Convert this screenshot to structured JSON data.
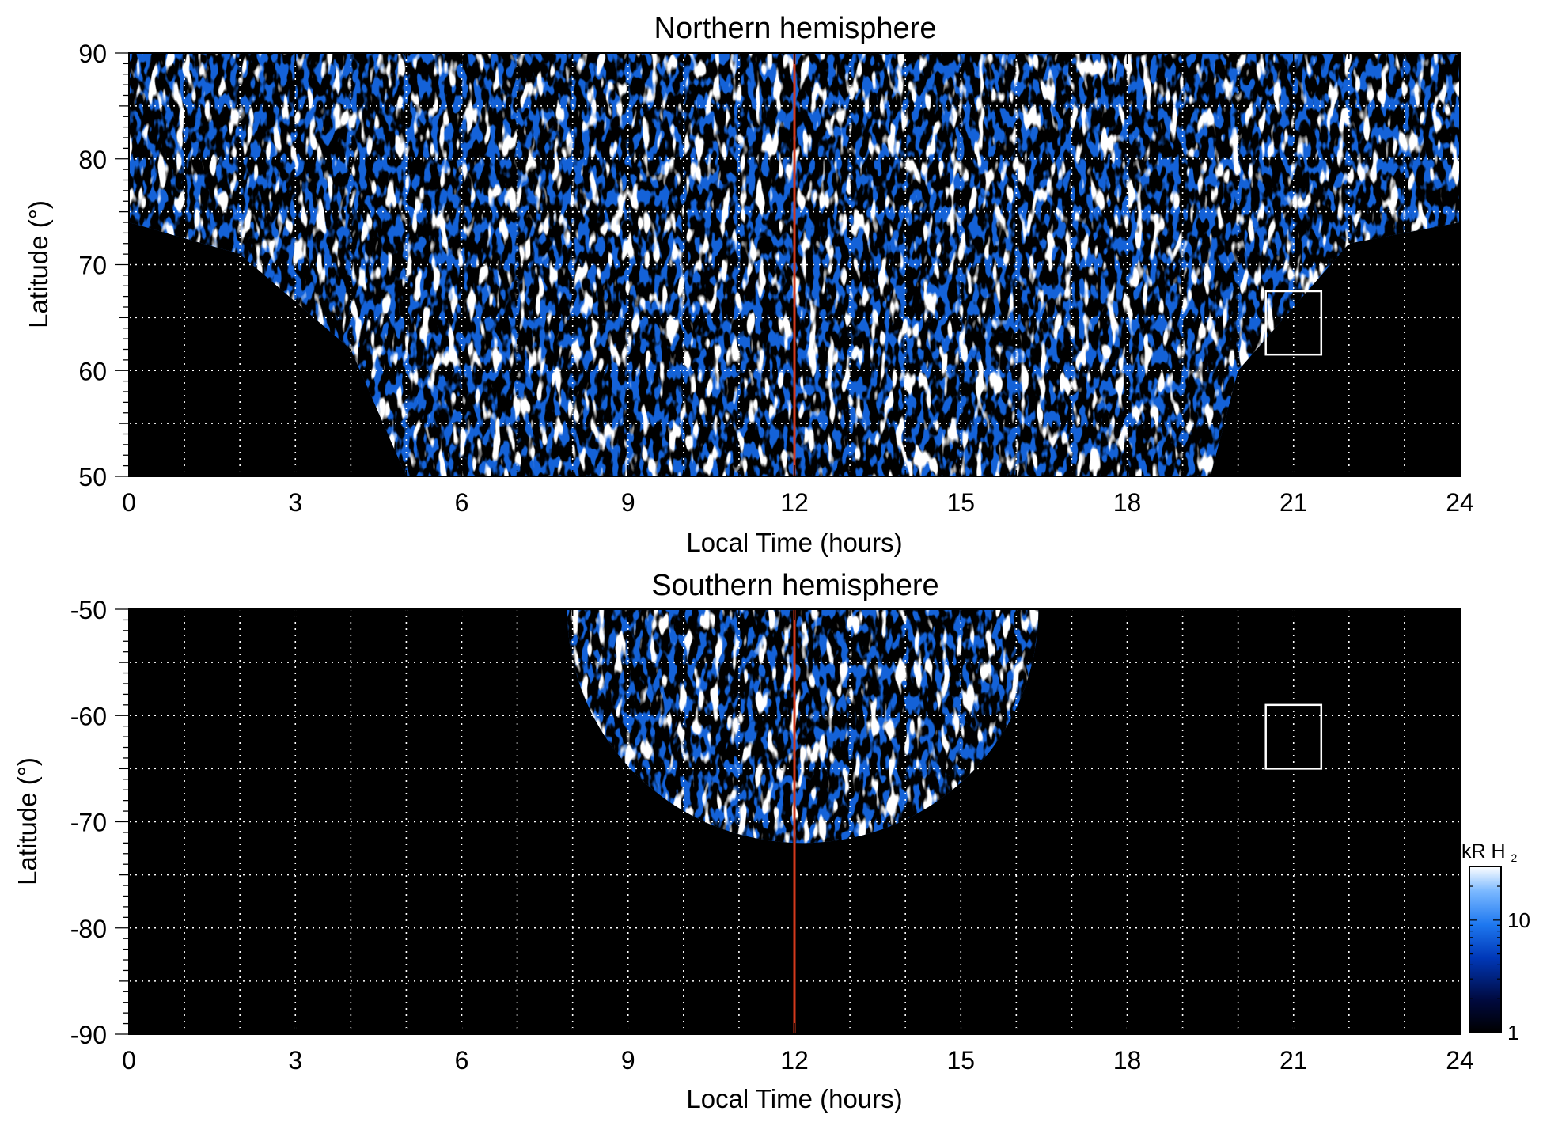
{
  "chart_data": [
    {
      "type": "heatmap",
      "title": "Northern hemisphere",
      "xlabel": "Local Time (hours)",
      "ylabel": "Latitude (°)",
      "xlim": [
        0,
        24
      ],
      "ylim": [
        50,
        90
      ],
      "xticks": [
        0,
        3,
        6,
        9,
        12,
        15,
        18,
        21,
        24
      ],
      "xticklabels": [
        "0",
        "3",
        "6",
        "9",
        "12",
        "15",
        "18",
        "21",
        "24"
      ],
      "yticks": [
        50,
        60,
        70,
        80,
        90
      ],
      "yticklabels": [
        "50",
        "60",
        "70",
        "80",
        "90"
      ],
      "grid": true,
      "vertical_line": {
        "x": 12,
        "color": "#d2391c"
      },
      "box": {
        "x": [
          20.5,
          21.5
        ],
        "y": [
          61.5,
          67.5
        ],
        "color": "#ffffff"
      },
      "coverage": {
        "description_points": [
          [
            0,
            74
          ],
          [
            2,
            71
          ],
          [
            4,
            62
          ],
          [
            5,
            50
          ],
          [
            19.5,
            50
          ],
          [
            20,
            60
          ],
          [
            22,
            72
          ],
          [
            24,
            74
          ]
        ],
        "gap_below_x0": 74
      }
    },
    {
      "type": "heatmap",
      "title": "Southern hemisphere",
      "xlabel": "Local Time (hours)",
      "ylabel": "Latitude (°)",
      "xlim": [
        0,
        24
      ],
      "ylim": [
        -90,
        -50
      ],
      "xticks": [
        0,
        3,
        6,
        9,
        12,
        15,
        18,
        21,
        24
      ],
      "xticklabels": [
        "0",
        "3",
        "6",
        "9",
        "12",
        "15",
        "18",
        "21",
        "24"
      ],
      "yticks": [
        -90,
        -80,
        -70,
        -60,
        -50
      ],
      "yticklabels": [
        "-90",
        "-80",
        "-70",
        "-60",
        "-50"
      ],
      "grid": true,
      "vertical_line": {
        "x": 12,
        "color": "#d2391c"
      },
      "box": {
        "x": [
          20.5,
          21.5
        ],
        "y": [
          -65,
          -59
        ],
        "color": "#ffffff"
      },
      "coverage": {
        "xrange": [
          7.9,
          16.4
        ],
        "min_latitude": -72
      }
    }
  ],
  "colorbar": {
    "label": "kR H",
    "label_subscript": "2",
    "scale": "log",
    "range": [
      1,
      30
    ],
    "ticks": [
      1,
      10
    ],
    "ticklabels": [
      "1",
      "10"
    ],
    "colors": [
      "#000000",
      "#001a66",
      "#0040c8",
      "#1e78f0",
      "#7ab8ff",
      "#ffffff"
    ]
  }
}
